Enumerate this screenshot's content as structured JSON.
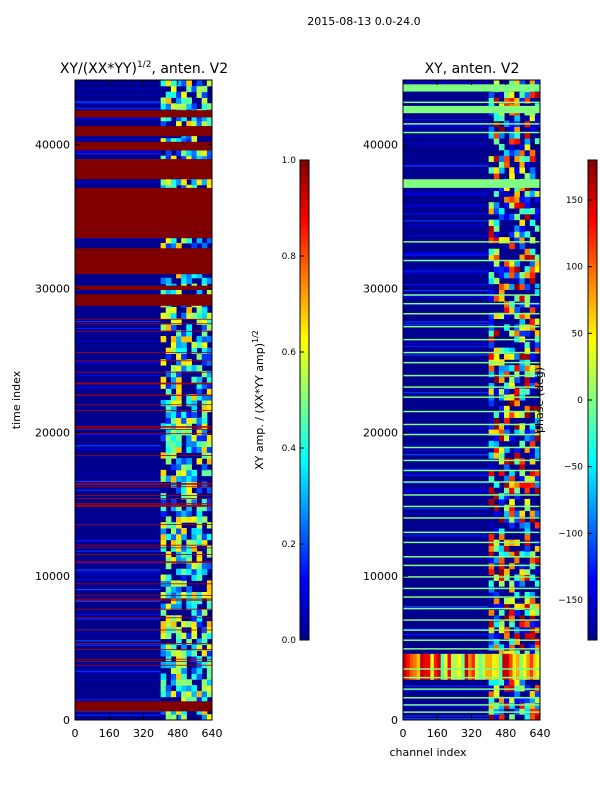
{
  "suptitle": "2015-08-13 0.0-24.0",
  "colors": {
    "saturated": "#800000",
    "background": "#00008f"
  },
  "chart_data": [
    {
      "type": "heatmap",
      "title_main": "XY/(XX*YY)",
      "title_exp": "1/2",
      "title_rest": ", anten. V2",
      "xlabel": "",
      "ylabel": "time index",
      "xlim": [
        0,
        640
      ],
      "ylim": [
        0,
        44500
      ],
      "x_ticks": [
        0,
        160,
        320,
        480,
        640
      ],
      "y_ticks": [
        0,
        10000,
        20000,
        30000,
        40000
      ],
      "colorbar": {
        "label": "XY amp. / (XX*YY amp)",
        "label_exp": "1/2",
        "vmin": 0,
        "vmax": 1,
        "ticks": [
          "0.0",
          "0.2",
          "0.4",
          "0.6",
          "0.8",
          "1.0"
        ],
        "tick_values": [
          0,
          0.2,
          0.4,
          0.6,
          0.8,
          1.0
        ]
      },
      "saturated_time_bands": [
        [
          600,
          1300
        ],
        [
          28800,
          29600
        ],
        [
          29900,
          30200
        ],
        [
          31000,
          32800
        ],
        [
          33500,
          37000
        ],
        [
          37600,
          39000
        ],
        [
          39600,
          40200
        ],
        [
          40600,
          41300
        ],
        [
          41900,
          42400
        ]
      ],
      "active_channel_range": [
        400,
        640
      ],
      "active_time_range": [
        0,
        44500
      ]
    },
    {
      "type": "heatmap",
      "title_main": "XY, anten. V2",
      "xlabel": "channel index",
      "ylabel": "",
      "xlim": [
        0,
        640
      ],
      "ylim": [
        0,
        44500
      ],
      "x_ticks": [
        0,
        160,
        320,
        480,
        640
      ],
      "y_ticks": [
        0,
        10000,
        20000,
        30000,
        40000
      ],
      "colorbar": {
        "label": "phase (deg)",
        "vmin": -180,
        "vmax": 180,
        "ticks": [
          "−150",
          "−100",
          "−50",
          "0",
          "50",
          "100",
          "150"
        ],
        "tick_values": [
          -150,
          -100,
          -50,
          0,
          50,
          100,
          150
        ]
      },
      "light_time_lines": [
        600,
        1100,
        1600,
        2200,
        3000,
        3600,
        5000,
        5600,
        6300,
        7000,
        7800,
        8600,
        9200,
        10000,
        10800,
        11400,
        12400,
        13100,
        14100,
        14900,
        15700,
        16600,
        17400,
        18100,
        19000,
        19900,
        20600,
        21500,
        22500,
        23200,
        24000,
        24900,
        25600,
        26500,
        27400,
        28300,
        29000,
        29600,
        32000,
        33300,
        37400,
        40900,
        41500,
        42300,
        43000,
        43800
      ],
      "broadband_time_range": [
        2800,
        4600
      ],
      "active_channel_range": [
        400,
        640
      ]
    }
  ]
}
